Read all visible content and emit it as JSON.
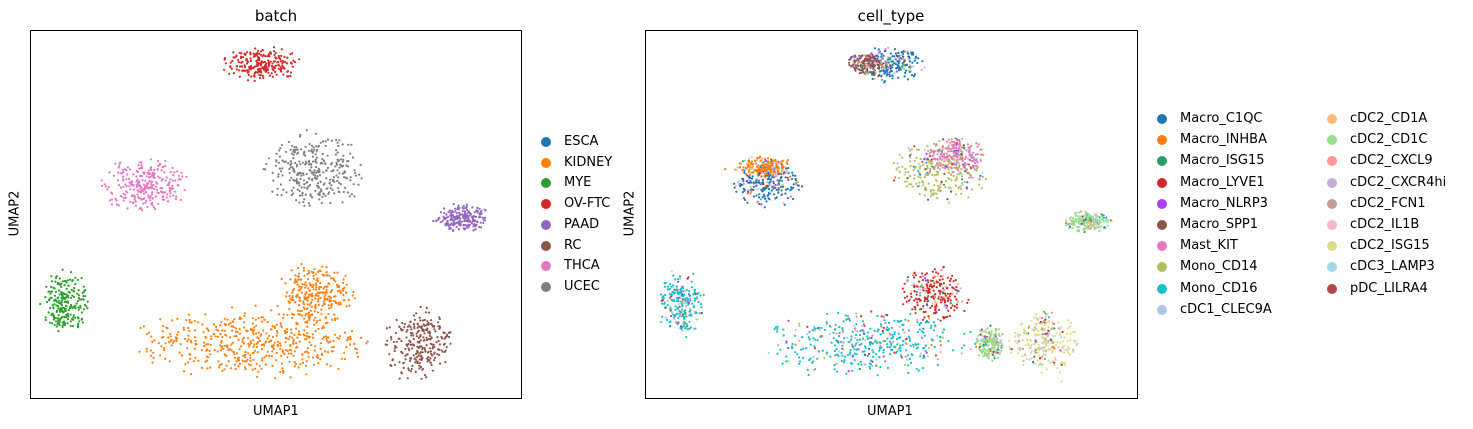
{
  "chart_data": [
    {
      "type": "scatter",
      "title": "batch",
      "xlabel": "UMAP1",
      "ylabel": "UMAP2",
      "grid": false,
      "legend_position": "right",
      "categories": [
        "ESCA",
        "KIDNEY",
        "MYE",
        "OV-FTC",
        "PAAD",
        "RC",
        "THCA",
        "UCEC"
      ],
      "colors": [
        "#1f77b4",
        "#ff7f0e",
        "#2ca02c",
        "#d62728",
        "#9467bd",
        "#8c564b",
        "#e377c2",
        "#7f7f7f"
      ],
      "clusters": [
        {
          "category": "OV-FTC",
          "x": 0.47,
          "y": 0.91,
          "spread_x": 0.08,
          "spread_y": 0.05
        },
        {
          "category": "UCEC",
          "x": 0.58,
          "y": 0.62,
          "spread_x": 0.11,
          "spread_y": 0.1
        },
        {
          "category": "THCA",
          "x": 0.23,
          "y": 0.58,
          "spread_x": 0.09,
          "spread_y": 0.08
        },
        {
          "category": "PAAD",
          "x": 0.88,
          "y": 0.49,
          "spread_x": 0.06,
          "spread_y": 0.04
        },
        {
          "category": "MYE",
          "x": 0.07,
          "y": 0.26,
          "spread_x": 0.05,
          "spread_y": 0.09
        },
        {
          "category": "KIDNEY",
          "x": 0.45,
          "y": 0.15,
          "spread_x": 0.25,
          "spread_y": 0.1
        },
        {
          "category": "KIDNEY",
          "x": 0.58,
          "y": 0.28,
          "spread_x": 0.08,
          "spread_y": 0.09
        },
        {
          "category": "RC",
          "x": 0.79,
          "y": 0.15,
          "spread_x": 0.07,
          "spread_y": 0.1
        }
      ]
    },
    {
      "type": "scatter",
      "title": "cell_type",
      "xlabel": "UMAP1",
      "ylabel": "UMAP2",
      "grid": false,
      "legend_position": "right",
      "legend_columns": 2,
      "categories": [
        "Macro_C1QC",
        "Macro_INHBA",
        "Macro_ISG15",
        "Macro_LYVE1",
        "Macro_NLRP3",
        "Macro_SPP1",
        "Mast_KIT",
        "Mono_CD14",
        "Mono_CD16",
        "cDC1_CLEC9A",
        "cDC2_CD1A",
        "cDC2_CD1C",
        "cDC2_CXCL9",
        "cDC2_CXCR4hi",
        "cDC2_FCN1",
        "cDC2_IL1B",
        "cDC2_ISG15",
        "cDC3_LAMP3",
        "pDC_LILRA4"
      ],
      "colors": [
        "#1f77b4",
        "#ff7f0e",
        "#279e68",
        "#d62728",
        "#aa40fc",
        "#8c564b",
        "#e377c2",
        "#b5bd61",
        "#17becf",
        "#aec7e8",
        "#ffbb78",
        "#98df8a",
        "#ff9896",
        "#c5b0d5",
        "#c49c94",
        "#f7b6d2",
        "#dbdb8d",
        "#9edae5",
        "#ad494a"
      ],
      "clusters": [
        {
          "category": "Macro_C1QC",
          "x": 0.5,
          "y": 0.91,
          "spread_x": 0.07,
          "spread_y": 0.05
        },
        {
          "category": "Macro_SPP1",
          "x": 0.45,
          "y": 0.91,
          "spread_x": 0.04,
          "spread_y": 0.03
        },
        {
          "category": "Mono_CD14",
          "x": 0.6,
          "y": 0.62,
          "spread_x": 0.1,
          "spread_y": 0.09
        },
        {
          "category": "Mast_KIT",
          "x": 0.63,
          "y": 0.66,
          "spread_x": 0.06,
          "spread_y": 0.05
        },
        {
          "category": "Macro_C1QC",
          "x": 0.25,
          "y": 0.58,
          "spread_x": 0.07,
          "spread_y": 0.06
        },
        {
          "category": "Macro_INHBA",
          "x": 0.24,
          "y": 0.63,
          "spread_x": 0.06,
          "spread_y": 0.03
        },
        {
          "category": "cDC2_CD1C",
          "x": 0.9,
          "y": 0.48,
          "spread_x": 0.05,
          "spread_y": 0.03
        },
        {
          "category": "Mono_CD16",
          "x": 0.07,
          "y": 0.26,
          "spread_x": 0.05,
          "spread_y": 0.09
        },
        {
          "category": "Mono_CD16",
          "x": 0.45,
          "y": 0.15,
          "spread_x": 0.22,
          "spread_y": 0.09
        },
        {
          "category": "Macro_LYVE1",
          "x": 0.59,
          "y": 0.28,
          "spread_x": 0.07,
          "spread_y": 0.08
        },
        {
          "category": "cDC2_CD1C",
          "x": 0.7,
          "y": 0.15,
          "spread_x": 0.03,
          "spread_y": 0.05
        },
        {
          "category": "cDC2_ISG15",
          "x": 0.81,
          "y": 0.15,
          "spread_x": 0.07,
          "spread_y": 0.09
        }
      ]
    }
  ]
}
